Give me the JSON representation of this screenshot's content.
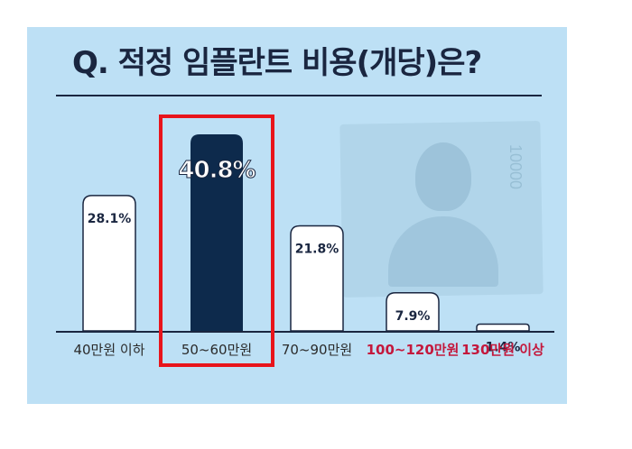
{
  "title": "Q. 적정 임플란트 비용(개당)은?",
  "colors": {
    "panel": "#bde0f5",
    "bar_default": "#ffffff",
    "bar_highlight": "#0d2a4c",
    "outline": "#1a2640",
    "label_dark": "#2b2b2b",
    "label_red": "#c4183c",
    "highlight_box": "#e8141b"
  },
  "chart_data": {
    "type": "bar",
    "categories": [
      "40만원 이하",
      "50~60만원",
      "70~90만원",
      "100~120만원",
      "130만원 이상"
    ],
    "values": [
      28.1,
      40.8,
      21.8,
      7.9,
      1.4
    ],
    "value_labels": [
      "28.1%",
      "40.8%",
      "21.8%",
      "7.9%",
      "1.4%"
    ],
    "highlighted_category": "50~60만원",
    "red_categories": [
      "100~120만원",
      "130만원 이상"
    ],
    "ylim": [
      0,
      40.8
    ],
    "grid": false,
    "legend": "none"
  }
}
